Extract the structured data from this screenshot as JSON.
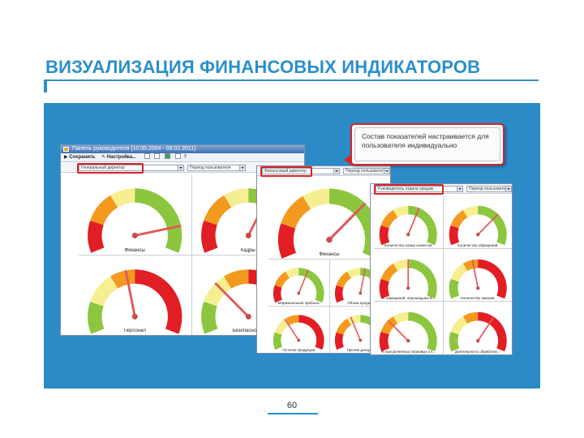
{
  "slide": {
    "title": "ВИЗУАЛИЗАЦИЯ ФИНАНСОВЫХ ИНДИКАТОРОВ",
    "page_number": "60",
    "accent_color": "#2b8fc8",
    "highlight_color": "#d8232a"
  },
  "window1": {
    "title": "Панель руководителя [10.05.2004 - 09.02.2011]",
    "toolbar": {
      "save_label": "Сохранить",
      "settings_label": "Настройка..."
    },
    "role_select": "Генеральный директор",
    "period_label": "Период пользователя",
    "gauges": [
      {
        "label": "Финансы",
        "needle": 0.85
      },
      {
        "label": "Кадры",
        "needle": 0.62
      },
      {
        "label": "Персонал",
        "needle": 0.45
      },
      {
        "label": "Безопасность",
        "needle": 0.3
      }
    ]
  },
  "window2": {
    "role_select": "Финансовый директор",
    "period_label": "Период пользователя",
    "main_gauge": {
      "label": "Финансы",
      "needle": 0.7
    },
    "gauges": [
      {
        "label": "Маржинальная прибыль",
        "needle": 0.6
      },
      {
        "label": "Объем продаж",
        "needle": 0.55
      },
      {
        "label": "Остатки продукции",
        "needle": 0.35
      },
      {
        "label": "Прочие доходы",
        "needle": 0.4
      }
    ]
  },
  "window3": {
    "role_select": "Руководитель отдела продаж",
    "period_label": "Период пользователя",
    "gauges": [
      {
        "label": "Количество новых клиентов",
        "needle": 0.6
      },
      {
        "label": "Количество обращений",
        "needle": 0.7
      },
      {
        "label": "% обращений, перешедших в...",
        "needle": 0.5
      },
      {
        "label": "Количество заказов",
        "needle": 0.45
      },
      {
        "label": "% просроченных плановых пл...",
        "needle": 0.3
      },
      {
        "label": "Длительность обработки...",
        "needle": 0.65
      }
    ]
  },
  "callout": {
    "text": "Состав показателей настраивается для пользователя индивидуально"
  }
}
